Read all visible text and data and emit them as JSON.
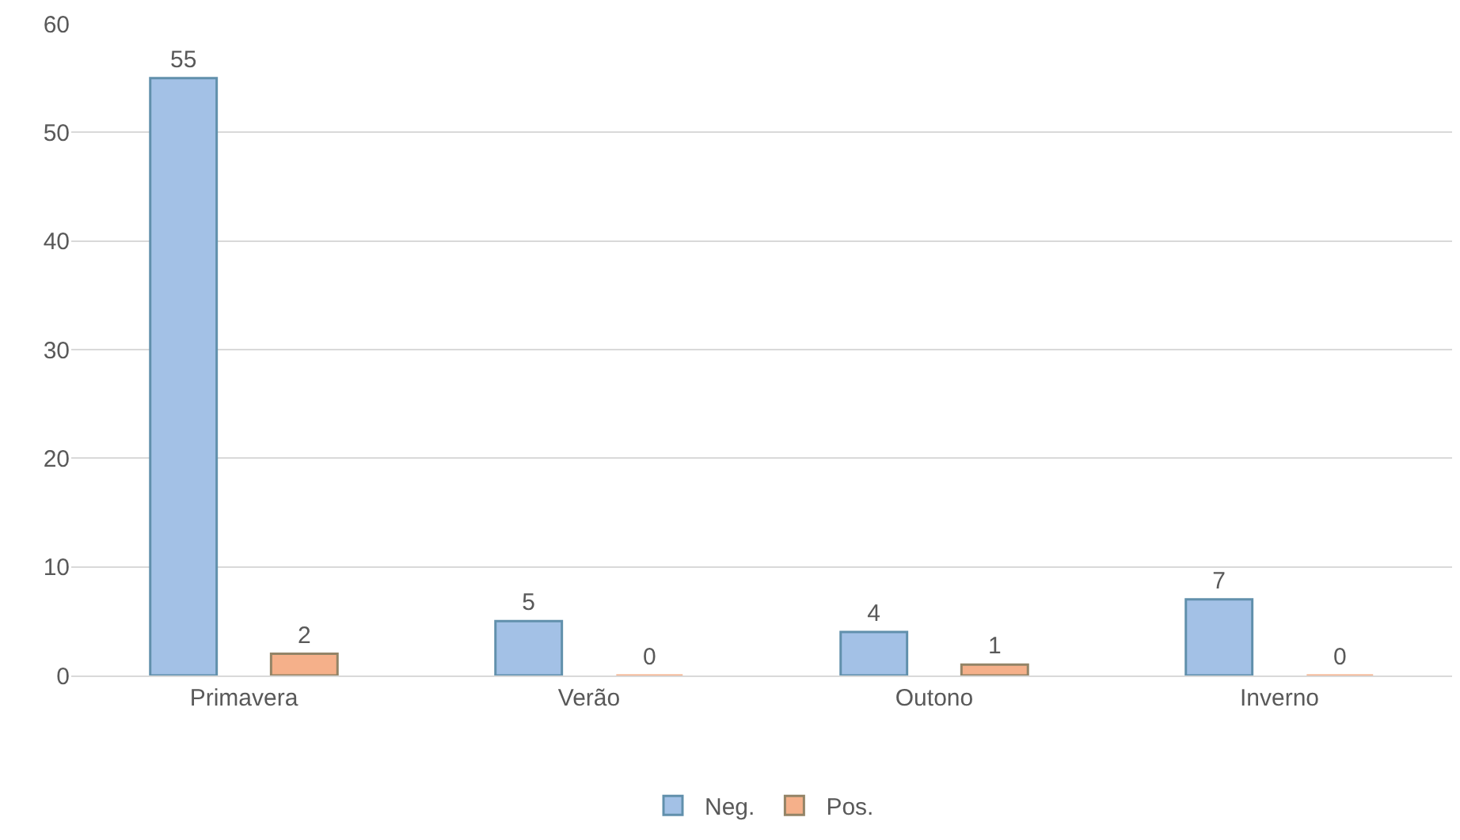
{
  "chart_data": {
    "type": "bar",
    "categories": [
      "Primavera",
      "Verão",
      "Outono",
      "Inverno"
    ],
    "series": [
      {
        "name": "Neg.",
        "color": "#a3c1e6",
        "values": [
          55,
          5,
          4,
          7
        ]
      },
      {
        "name": "Pos.",
        "color": "#f5b08a",
        "values": [
          2,
          0,
          1,
          0
        ]
      }
    ],
    "ylim": [
      0,
      60
    ],
    "yticks": [
      0,
      10,
      20,
      30,
      40,
      50,
      60
    ],
    "grid": "y",
    "legend": "bottom",
    "data_labels": true
  }
}
